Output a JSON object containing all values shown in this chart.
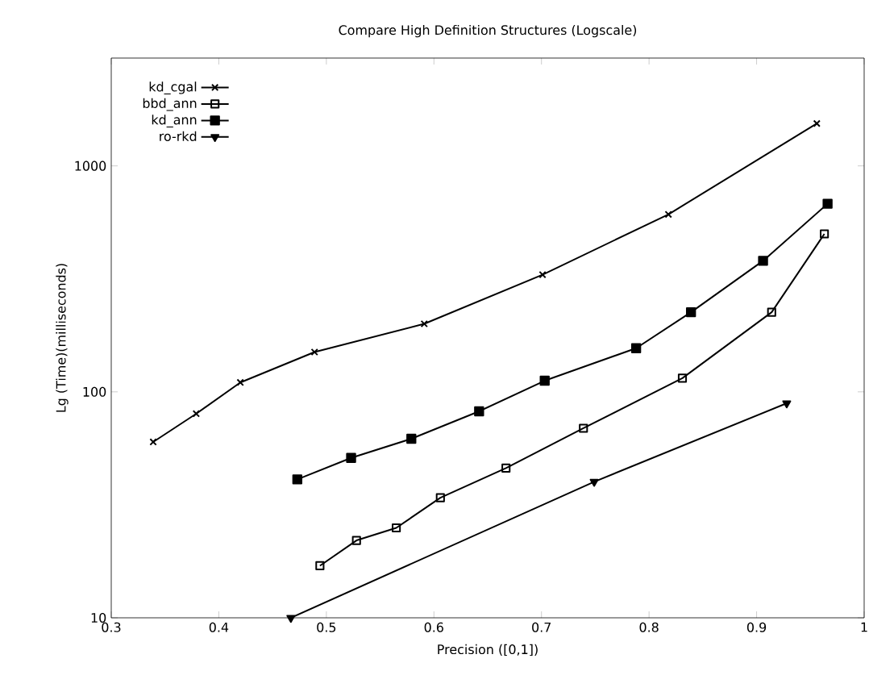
{
  "chart_data": {
    "type": "line",
    "title": "Compare High Definition Structures (Logscale)",
    "xlabel": "Precision ([0,1])",
    "ylabel": "Lg (Time)(milliseconds)",
    "log": "y",
    "xlim": [
      0.3,
      1
    ],
    "xticks": [
      0.3,
      0.4,
      0.5,
      0.6,
      0.7,
      0.8,
      0.9,
      1
    ],
    "ylim": [
      10,
      3000
    ],
    "yticks": [
      10,
      100,
      1000
    ],
    "legend": "top left",
    "grid": false,
    "line_style": "solid",
    "series": [
      {
        "name": "kd_cgal",
        "color": "#000000",
        "marker": "cross",
        "x": [
          0.339,
          0.379,
          0.42,
          0.489,
          0.591,
          0.701,
          0.818,
          0.956
        ],
        "values": [
          60,
          80,
          110,
          150,
          200,
          330,
          610,
          1540
        ]
      },
      {
        "name": "bbd_ann",
        "color": "#000000",
        "marker": "square",
        "x": [
          0.494,
          0.528,
          0.565,
          0.606,
          0.667,
          0.739,
          0.831,
          0.914,
          0.963
        ],
        "values": [
          17,
          22,
          25,
          34,
          46,
          69,
          115,
          225,
          500
        ]
      },
      {
        "name": "kd_ann",
        "color": "#000000",
        "marker": "square",
        "x": [
          0.473,
          0.523,
          0.579,
          0.642,
          0.703,
          0.788,
          0.839,
          0.906,
          0.966
        ],
        "values": [
          41,
          51,
          62,
          82,
          112,
          156,
          225,
          380,
          680
        ]
      },
      {
        "name": "ro-rkd",
        "color": "#000000",
        "marker": "triangle",
        "x": [
          0.467,
          0.749,
          0.928
        ],
        "values": [
          10,
          40,
          89
        ]
      }
    ]
  }
}
